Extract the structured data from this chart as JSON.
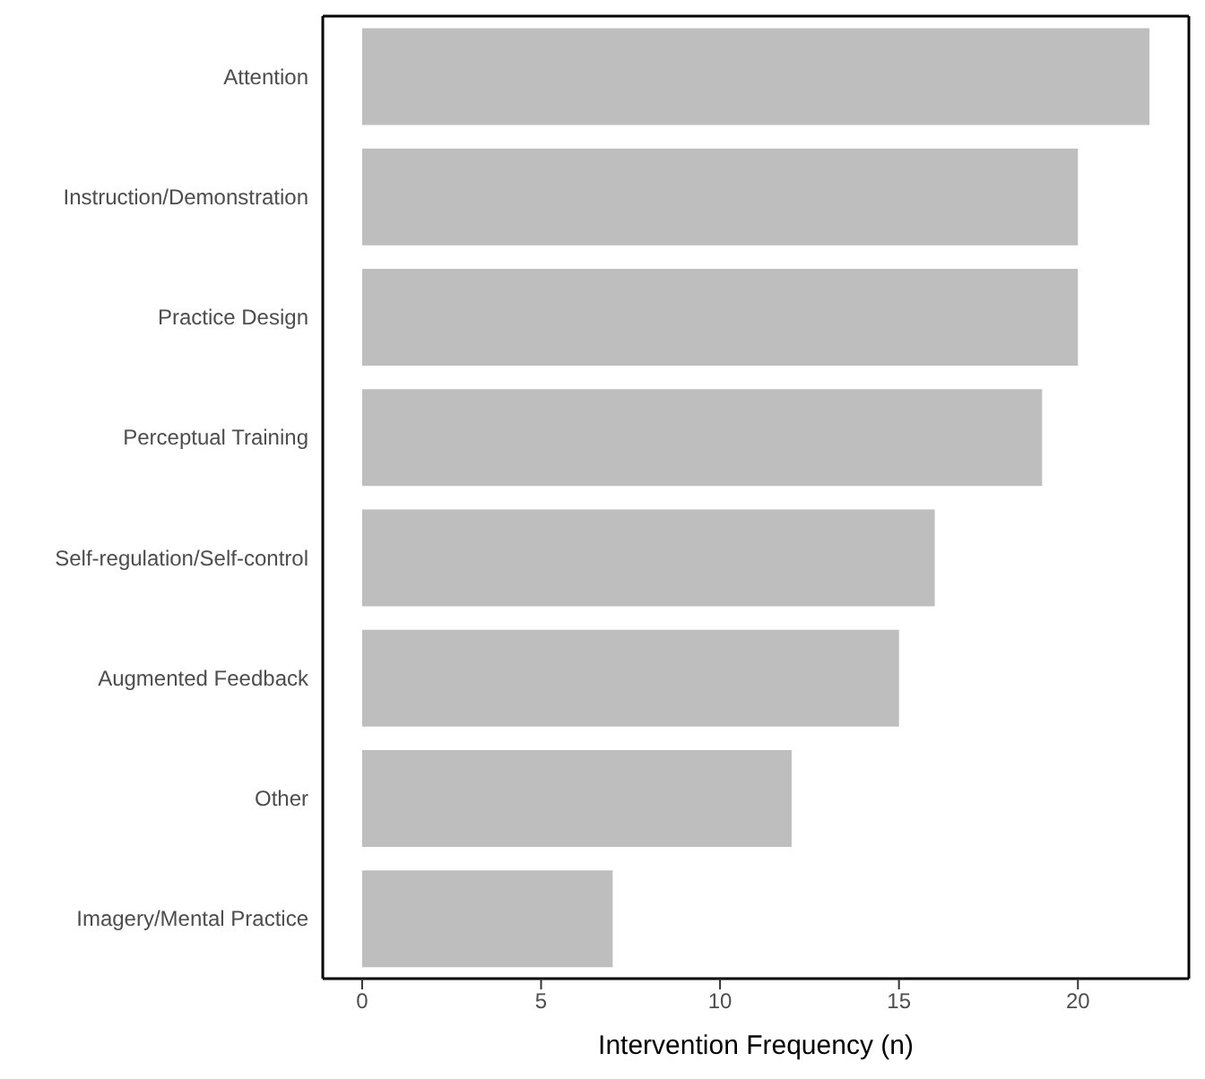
{
  "chart_data": {
    "type": "bar",
    "orientation": "horizontal",
    "xlabel": "Intervention Frequency (n)",
    "categories": [
      "Attention",
      "Instruction/Demonstration",
      "Practice Design",
      "Perceptual Training",
      "Self-regulation/Self-control",
      "Augmented Feedback",
      "Other",
      "Imagery/Mental Practice"
    ],
    "values": [
      22,
      20,
      20,
      19,
      16,
      15,
      12,
      7
    ],
    "color": "#bebebe",
    "xlim": [
      -1.1,
      23.1
    ],
    "xticks": [
      0,
      5,
      10,
      15,
      20
    ],
    "grid": false,
    "legend": false
  }
}
